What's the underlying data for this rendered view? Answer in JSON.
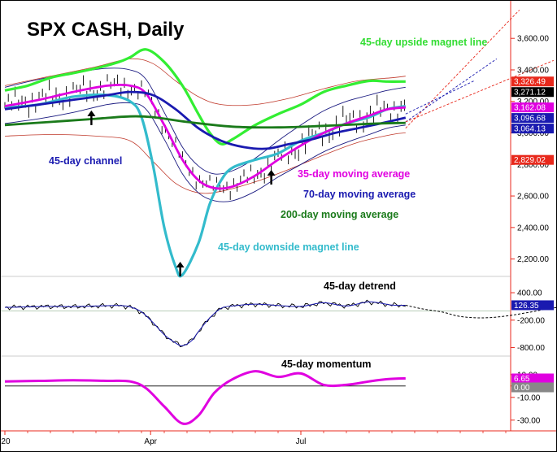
{
  "title": "SPX CASH, Daily",
  "chart_data": [
    {
      "type": "line",
      "panel": "price",
      "title": "SPX CASH, Daily",
      "yticks": [
        "3,600.00",
        "3,400.00",
        "3,200.00",
        "3,000.00",
        "2,800.00",
        "2,600.00",
        "2,400.00",
        "2,200.00"
      ],
      "ytick_values": [
        3600,
        3400,
        3200,
        3000,
        2800,
        2600,
        2400,
        2200
      ],
      "ylim": [
        2100,
        3730
      ],
      "xticks": [
        "'20",
        "Apr",
        "Jul"
      ],
      "xtick_days": [
        0,
        64,
        130
      ],
      "value_badges": [
        {
          "text": "3,326.49",
          "value": 3326.49,
          "color": "#e8291c"
        },
        {
          "text": "3,271.12",
          "value": 3271.12,
          "color": "#000000"
        },
        {
          "text": "3,162.08",
          "value": 3162.08,
          "color": "#e000e0"
        },
        {
          "text": "3,096.68",
          "value": 3096.68,
          "color": "#1a1ab0"
        },
        {
          "text": "3,064.13",
          "value": 3064.13,
          "color": "#1a1ab0"
        },
        {
          "text": "2,829.02",
          "value": 2829.02,
          "color": "#e8291c"
        }
      ],
      "annotations": [
        {
          "text": "45-day upside magnet line",
          "color": "#33dd33"
        },
        {
          "text": "45-day channel",
          "color": "#1a1ab0"
        },
        {
          "text": "35-day moving average",
          "color": "#e000e0"
        },
        {
          "text": "70-day moving average",
          "color": "#1a1ab0"
        },
        {
          "text": "200-day moving average",
          "color": "#1a7a1a"
        },
        {
          "text": "45-day downside magnet line",
          "color": "#33bbcc"
        }
      ],
      "arrow_days": [
        38,
        77,
        117
      ],
      "series": [
        {
          "key": "upside_magnet",
          "color": "#33ee33",
          "x": [
            0,
            10,
            20,
            30,
            40,
            50,
            55,
            62,
            70,
            78,
            85,
            90,
            95,
            100,
            110,
            120,
            130,
            140,
            150,
            160,
            168,
            176
          ],
          "y": [
            3270,
            3300,
            3350,
            3380,
            3410,
            3450,
            3480,
            3530,
            3450,
            3300,
            3120,
            3000,
            2930,
            2960,
            3050,
            3120,
            3180,
            3260,
            3300,
            3330,
            3326,
            3326
          ]
        },
        {
          "key": "downside_magnet",
          "color": "#33bbcc",
          "x": [
            0,
            15,
            30,
            45,
            55,
            60,
            65,
            70,
            75,
            78,
            85,
            90,
            95,
            100,
            110,
            120,
            130,
            140,
            150,
            160,
            168,
            176
          ],
          "y": [
            3160,
            3180,
            3230,
            3240,
            3200,
            3100,
            2800,
            2400,
            2150,
            2100,
            2300,
            2550,
            2700,
            2780,
            2830,
            2870,
            2950,
            3000,
            3060,
            3100,
            3150,
            3170
          ]
        },
        {
          "key": "ma35",
          "color": "#e000e0",
          "x": [
            0,
            15,
            30,
            45,
            55,
            62,
            70,
            78,
            85,
            92,
            100,
            110,
            120,
            130,
            140,
            150,
            160,
            168,
            176
          ],
          "y": [
            3170,
            3210,
            3260,
            3300,
            3300,
            3250,
            3050,
            2830,
            2700,
            2650,
            2660,
            2730,
            2830,
            2920,
            3000,
            3060,
            3110,
            3150,
            3162
          ]
        },
        {
          "key": "ma70",
          "color": "#1a1ab0",
          "x": [
            0,
            15,
            30,
            45,
            55,
            65,
            75,
            85,
            95,
            105,
            115,
            125,
            135,
            145,
            155,
            165,
            176
          ],
          "y": [
            3150,
            3180,
            3210,
            3240,
            3260,
            3240,
            3150,
            3030,
            2950,
            2910,
            2900,
            2930,
            2960,
            3000,
            3030,
            3060,
            3097
          ]
        },
        {
          "key": "ma200",
          "color": "#1a7a1a",
          "x": [
            0,
            20,
            40,
            55,
            65,
            80,
            100,
            120,
            140,
            160,
            176
          ],
          "y": [
            3050,
            3070,
            3090,
            3105,
            3100,
            3070,
            3040,
            3035,
            3045,
            3058,
            3064
          ]
        }
      ],
      "channel_upper": {
        "x": [
          0,
          15,
          30,
          45,
          55,
          62,
          70,
          78,
          85,
          92,
          100,
          110,
          120,
          130,
          140,
          150,
          160,
          168,
          176
        ],
        "y": [
          3290,
          3340,
          3380,
          3410,
          3400,
          3340,
          3130,
          2910,
          2790,
          2740,
          2760,
          2840,
          2950,
          3050,
          3140,
          3200,
          3240,
          3270,
          3290
        ]
      },
      "channel_lower": {
        "x": [
          0,
          15,
          30,
          45,
          55,
          62,
          70,
          78,
          85,
          92,
          100,
          110,
          120,
          130,
          140,
          150,
          160,
          168,
          176
        ],
        "y": [
          3060,
          3090,
          3130,
          3180,
          3190,
          3150,
          2960,
          2740,
          2620,
          2570,
          2570,
          2630,
          2720,
          2800,
          2880,
          2940,
          2990,
          3030,
          3050
        ]
      },
      "outer_envelope_upper": {
        "x": [
          0,
          20,
          40,
          55,
          65,
          75,
          85,
          95,
          110,
          125,
          140,
          155,
          170,
          176
        ],
        "y": [
          3300,
          3360,
          3420,
          3470,
          3440,
          3330,
          3230,
          3180,
          3180,
          3220,
          3280,
          3330,
          3350,
          3360
        ]
      },
      "outer_envelope_lower": {
        "x": [
          0,
          20,
          40,
          55,
          65,
          75,
          85,
          95,
          110,
          125,
          140,
          155,
          170,
          176
        ],
        "y": [
          2980,
          2990,
          2980,
          2950,
          2820,
          2680,
          2620,
          2630,
          2690,
          2770,
          2860,
          2940,
          2990,
          3000
        ]
      },
      "projection_lines": [
        {
          "color": "#e8291c",
          "x": [
            0,
            50
          ],
          "y": [
            3030,
            3780
          ]
        },
        {
          "color": "#1a1ab0",
          "x": [
            0,
            40
          ],
          "y": [
            3070,
            3470
          ]
        },
        {
          "color": "#e8291c",
          "x": [
            0,
            65
          ],
          "y": [
            3070,
            3460
          ]
        },
        {
          "color": "#1a1ab0",
          "x": [
            0,
            30
          ],
          "y": [
            3120,
            3330
          ]
        }
      ]
    },
    {
      "type": "line",
      "panel": "detrend",
      "title": "45-day detrend",
      "yticks": [
        "400.00",
        "-200.00",
        "-800.00"
      ],
      "ytick_values": [
        400,
        -200,
        -800
      ],
      "ylim": [
        -950,
        650
      ],
      "value_badge": {
        "text": "126.35",
        "value": 126.35,
        "color": "#1a1ab0"
      },
      "series": [
        {
          "key": "detrend",
          "color": "#000000",
          "x": [
            0,
            10,
            20,
            30,
            40,
            50,
            55,
            60,
            65,
            70,
            75,
            78,
            82,
            85,
            90,
            95,
            100,
            110,
            120,
            130,
            140,
            150,
            160,
            170,
            176
          ],
          "y": [
            80,
            90,
            100,
            95,
            110,
            120,
            90,
            -20,
            -250,
            -520,
            -700,
            -760,
            -650,
            -450,
            -150,
            60,
            110,
            150,
            120,
            100,
            180,
            110,
            200,
            130,
            126
          ]
        }
      ],
      "projection": {
        "x": [
          176,
          184,
          192,
          200,
          210,
          220,
          230,
          240,
          250
        ],
        "y": [
          126,
          40,
          -20,
          -120,
          -150,
          -110,
          -30,
          60,
          120
        ]
      }
    },
    {
      "type": "line",
      "panel": "momentum",
      "title": "45-day momentum",
      "yticks": [
        "10.00",
        "0.00",
        "-10.00",
        "-30.00"
      ],
      "ytick_values": [
        10,
        0,
        -10,
        -30
      ],
      "ylim": [
        -38,
        22
      ],
      "value_badges": [
        {
          "text": "6.65",
          "value": 6.65,
          "color": "#e000e0"
        },
        {
          "text": "0.00",
          "value": 0,
          "color": "#888888"
        }
      ],
      "series": [
        {
          "key": "momentum",
          "color": "#e000e0",
          "x": [
            0,
            15,
            30,
            45,
            55,
            62,
            70,
            78,
            85,
            92,
            100,
            110,
            120,
            130,
            140,
            150,
            160,
            168,
            176
          ],
          "y": [
            4,
            4.5,
            5,
            4.5,
            4,
            -2,
            -18,
            -33,
            -26,
            -6,
            6,
            13,
            8,
            11,
            1,
            1,
            4,
            6,
            6.65
          ]
        }
      ]
    }
  ]
}
